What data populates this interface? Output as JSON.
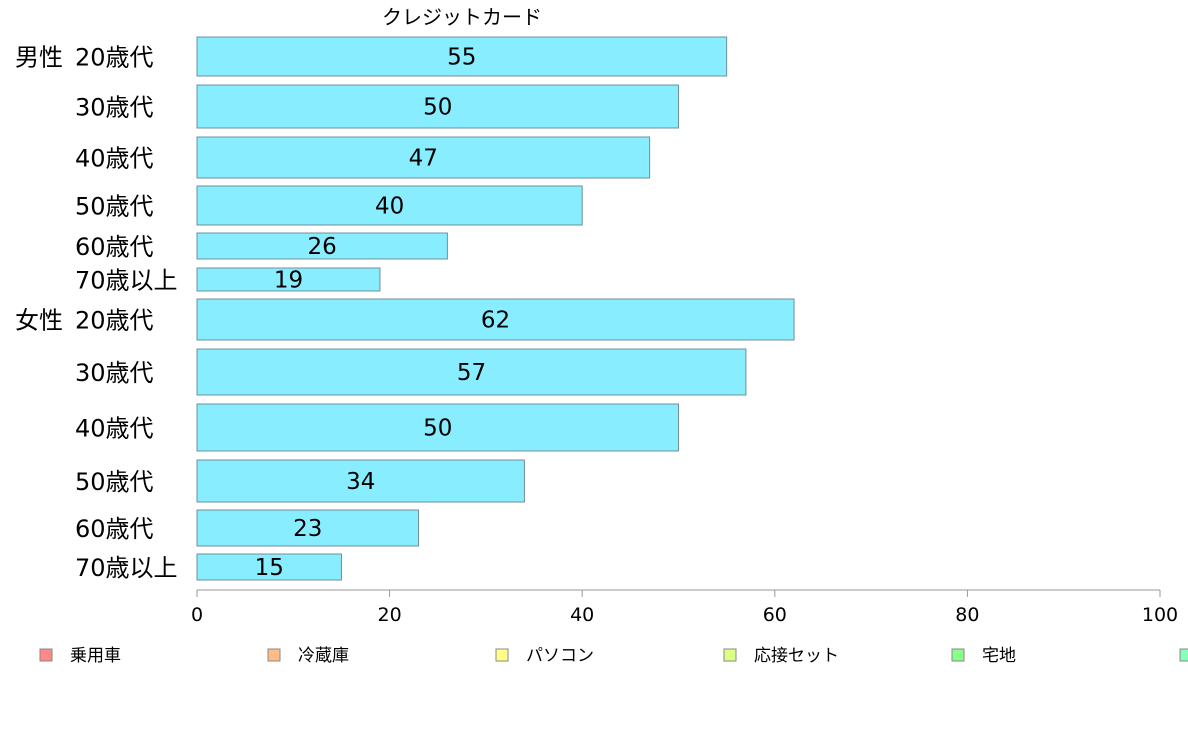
{
  "chart_data": {
    "type": "bar",
    "orientation": "horizontal",
    "title": "クレジットカード",
    "xlabel": "",
    "ylabel": "",
    "xlim": [
      0,
      100
    ],
    "x_ticks": [
      "0",
      "20",
      "40",
      "60",
      "80",
      "100"
    ],
    "grid": false,
    "groups": [
      {
        "name": "男性",
        "start": 0
      },
      {
        "name": "女性",
        "start": 6
      }
    ],
    "categories": [
      "20歳代",
      "30歳代",
      "40歳代",
      "50歳代",
      "60歳代",
      "70歳以上",
      "20歳代",
      "30歳代",
      "40歳代",
      "50歳代",
      "60歳代",
      "70歳以上"
    ],
    "values": [
      55,
      50,
      47,
      40,
      26,
      19,
      62,
      57,
      50,
      34,
      23,
      15
    ],
    "value_labels": [
      "55",
      "50",
      "47",
      "40",
      "26",
      "19",
      "62",
      "57",
      "50",
      "34",
      "23",
      "15"
    ],
    "legend_position": "bottom",
    "legend": [
      {
        "label": "乗用車",
        "color": "#ff8888"
      },
      {
        "label": "冷蔵庫",
        "color": "#ffbb88"
      },
      {
        "label": "パソコン",
        "color": "#ffff88"
      },
      {
        "label": "応接セット",
        "color": "#ddff88"
      },
      {
        "label": "宅地",
        "color": "#88ff88"
      },
      {
        "label": "",
        "color": "#88ffbb"
      }
    ],
    "colors": {
      "bar_fill": "#88eeff",
      "bar_stroke": "#6f8f99",
      "axis": "#999999"
    }
  }
}
